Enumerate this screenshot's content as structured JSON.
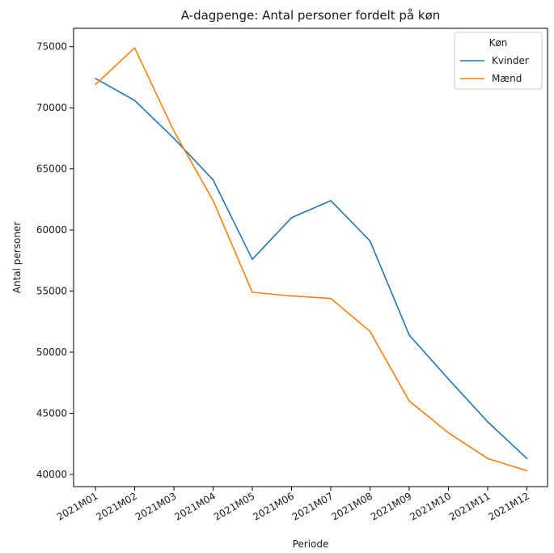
{
  "chart_data": {
    "type": "line",
    "title": "A-dagpenge: Antal personer fordelt på køn",
    "xlabel": "Periode",
    "ylabel": "Antal personer",
    "categories": [
      "2021M01",
      "2021M02",
      "2021M03",
      "2021M04",
      "2021M05",
      "2021M06",
      "2021M07",
      "2021M08",
      "2021M09",
      "2021M10",
      "2021M11",
      "2021M12"
    ],
    "yticks": [
      40000,
      45000,
      50000,
      55000,
      60000,
      65000,
      70000,
      75000
    ],
    "ytick_labels": [
      "40000",
      "45000",
      "50000",
      "55000",
      "60000",
      "65000",
      "70000",
      "75000"
    ],
    "ylim": [
      39000,
      76500
    ],
    "grid": false,
    "legend": {
      "title": "Køn",
      "placement": "top-right"
    },
    "series": [
      {
        "name": "Kvinder",
        "color": "#1f77b4",
        "values": [
          72400,
          70600,
          67500,
          64100,
          57600,
          61000,
          62400,
          59100,
          51400,
          47800,
          44300,
          41300
        ]
      },
      {
        "name": "Mænd",
        "color": "#ff7f0e",
        "values": [
          71900,
          74900,
          68100,
          62400,
          54900,
          54600,
          54400,
          51700,
          46000,
          43400,
          41300,
          40300
        ]
      }
    ]
  }
}
